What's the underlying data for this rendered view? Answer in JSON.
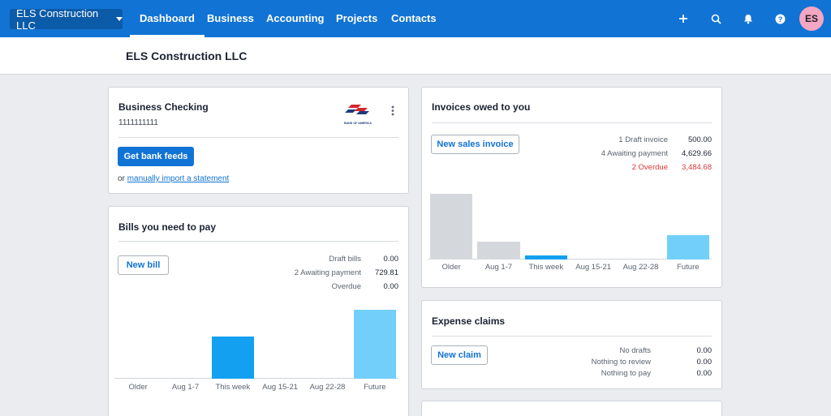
{
  "nav": {
    "org_name": "ELS Construction LLC",
    "items": [
      "Dashboard",
      "Business",
      "Accounting",
      "Projects",
      "Contacts"
    ],
    "active": "Dashboard",
    "avatar_initials": "ES"
  },
  "page": {
    "title": "ELS Construction LLC"
  },
  "bank": {
    "title": "Business Checking",
    "account_number": "1111111111",
    "logo_text": "BANK OF AMERICA",
    "feeds_button": "Get bank feeds",
    "or_text": "or",
    "import_link": "manually import a statement"
  },
  "bills": {
    "title": "Bills you need to pay",
    "button": "New bill",
    "summary": [
      {
        "label": "Draft bills",
        "value": "0.00"
      },
      {
        "label": "2 Awaiting payment",
        "value": "729.81"
      },
      {
        "label": "Overdue",
        "value": "0.00"
      }
    ],
    "chart_data": {
      "type": "bar",
      "categories": [
        "Older",
        "Aug 1-7",
        "This week",
        "Aug 15-21",
        "Aug 22-28",
        "Future"
      ],
      "values": [
        0,
        0,
        370,
        0,
        0,
        600
      ],
      "colors": [
        "#d4d8dc",
        "#d4d8dc",
        "#14a0f0",
        "#14a0f0",
        "#14a0f0",
        "#72cffa"
      ],
      "ylim": [
        0,
        650
      ]
    }
  },
  "invoices": {
    "title": "Invoices owed to you",
    "button": "New sales invoice",
    "summary": [
      {
        "label": "1 Draft invoice",
        "value": "500.00"
      },
      {
        "label": "4 Awaiting payment",
        "value": "4,629.66"
      },
      {
        "label": "2 Overdue",
        "value": "3,484.68",
        "status": "overdue"
      }
    ],
    "chart_data": {
      "type": "bar",
      "categories": [
        "Older",
        "Aug 1-7",
        "This week",
        "Aug 15-21",
        "Aug 22-28",
        "Future"
      ],
      "values": [
        3484.68,
        950,
        220,
        0,
        0,
        1300
      ],
      "colors": [
        "#d4d8dc",
        "#d4d8dc",
        "#14a0f0",
        "#14a0f0",
        "#14a0f0",
        "#72cffa"
      ],
      "ylim": [
        0,
        3600
      ]
    }
  },
  "expenses": {
    "title": "Expense claims",
    "button": "New claim",
    "summary": [
      {
        "label": "No drafts",
        "value": "0.00"
      },
      {
        "label": "Nothing to review",
        "value": "0.00"
      },
      {
        "label": "Nothing to pay",
        "value": "0.00"
      }
    ]
  }
}
